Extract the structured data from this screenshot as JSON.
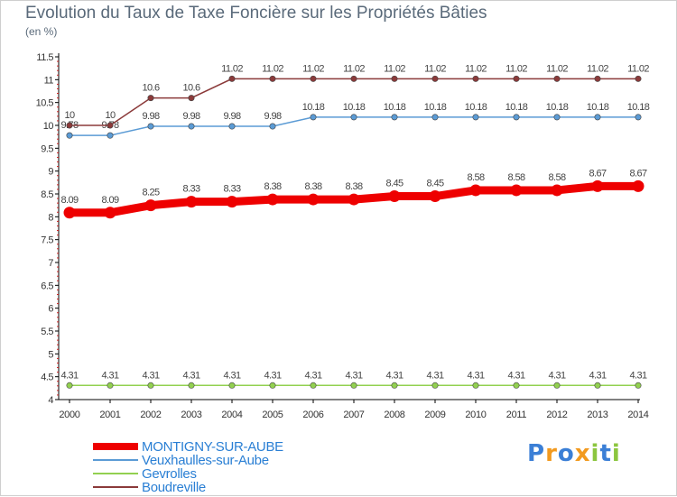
{
  "title": "Evolution du Taux de Taxe Foncière sur les Propriétés Bâties",
  "unit": "(en %)",
  "logo": {
    "letters": [
      {
        "ch": "P",
        "color": "#3b7fd6"
      },
      {
        "ch": "r",
        "color": "#f29a1f"
      },
      {
        "ch": "o",
        "color": "#3b7fd6"
      },
      {
        "ch": "x",
        "color": "#f29a1f"
      },
      {
        "ch": "i",
        "color": "#8cc63f"
      },
      {
        "ch": "t",
        "color": "#3b7fd6"
      },
      {
        "ch": "i",
        "color": "#8cc63f"
      }
    ]
  },
  "chart_data": {
    "type": "line",
    "title": "Evolution du Taux de Taxe Foncière sur les Propriétés Bâties",
    "ylabel": "(en %)",
    "xlabel": "",
    "x": [
      "2000",
      "2001",
      "2002",
      "2003",
      "2004",
      "2005",
      "2006",
      "2007",
      "2008",
      "2009",
      "2010",
      "2011",
      "2012",
      "2013",
      "2014"
    ],
    "ylim": [
      4,
      11.5
    ],
    "yticks": [
      "4",
      "4.5",
      "5",
      "5.5",
      "6",
      "6.5",
      "7",
      "7.5",
      "8",
      "8.5",
      "9",
      "9.5",
      "10",
      "10.5",
      "11",
      "11.5"
    ],
    "grid": false,
    "legend_position": "bottom-left",
    "series": [
      {
        "name": "MONTIGNY-SUR-AUBE",
        "color": "#ee0000",
        "emphasis": "thick",
        "values": [
          8.09,
          8.09,
          8.25,
          8.33,
          8.33,
          8.38,
          8.38,
          8.38,
          8.45,
          8.45,
          8.58,
          8.58,
          8.58,
          8.67,
          8.67
        ],
        "labels": [
          "8.09",
          "8.09",
          "8.25",
          "8.33",
          "8.33",
          "8.38",
          "8.38",
          "8.38",
          "8.45",
          "8.45",
          "8.58",
          "8.58",
          "8.58",
          "8.67",
          "8.67"
        ]
      },
      {
        "name": "Veuxhaulles-sur-Aube",
        "color": "#5b9bd5",
        "emphasis": "thin",
        "values": [
          9.78,
          9.78,
          9.98,
          9.98,
          9.98,
          9.98,
          10.18,
          10.18,
          10.18,
          10.18,
          10.18,
          10.18,
          10.18,
          10.18,
          10.18
        ],
        "labels": [
          "9.78",
          "9.78",
          "9.98",
          "9.98",
          "9.98",
          "9.98",
          "10.18",
          "10.18",
          "10.18",
          "10.18",
          "10.18",
          "10.18",
          "10.18",
          "10.18",
          "10.18"
        ]
      },
      {
        "name": "Gevrolles",
        "color": "#92d050",
        "emphasis": "thin",
        "values": [
          4.31,
          4.31,
          4.31,
          4.31,
          4.31,
          4.31,
          4.31,
          4.31,
          4.31,
          4.31,
          4.31,
          4.31,
          4.31,
          4.31,
          4.31
        ],
        "labels": [
          "4.31",
          "4.31",
          "4.31",
          "4.31",
          "4.31",
          "4.31",
          "4.31",
          "4.31",
          "4.31",
          "4.31",
          "4.31",
          "4.31",
          "4.31",
          "4.31",
          "4.31"
        ]
      },
      {
        "name": "Boudreville",
        "color": "#8b3a3a",
        "emphasis": "thin",
        "values": [
          10,
          10,
          10.6,
          10.6,
          11.02,
          11.02,
          11.02,
          11.02,
          11.02,
          11.02,
          11.02,
          11.02,
          11.02,
          11.02,
          11.02
        ],
        "labels": [
          "10",
          "10",
          "10.6",
          "10.6",
          "11.02",
          "11.02",
          "11.02",
          "11.02",
          "11.02",
          "11.02",
          "11.02",
          "11.02",
          "11.02",
          "11.02",
          "11.02"
        ]
      }
    ]
  }
}
